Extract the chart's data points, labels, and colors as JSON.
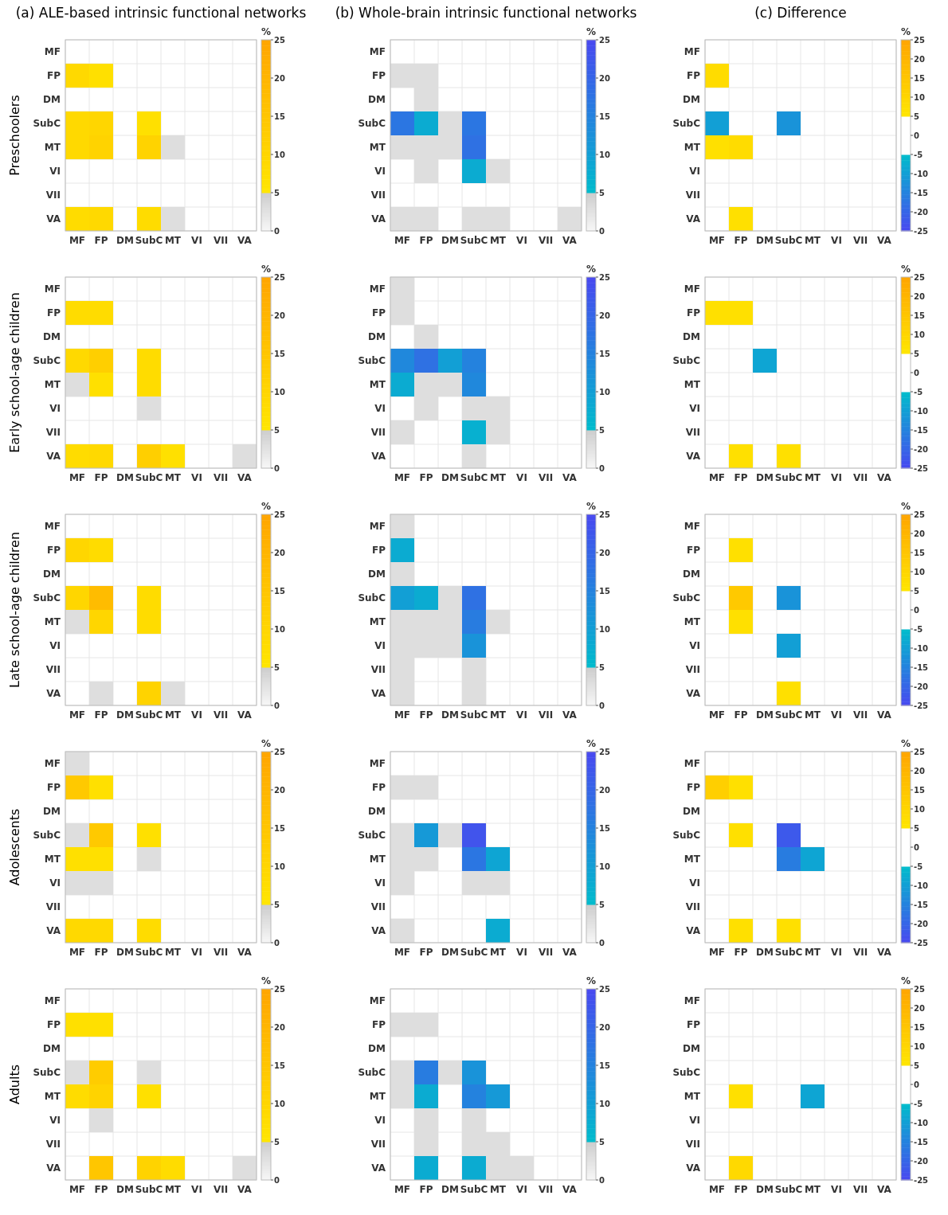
{
  "chart_data": [
    {
      "type": "heatmap",
      "title": "(a) ALE-based intrinsic functional networks",
      "ylabel": "Preschoolers",
      "clabel": "%",
      "categories": [
        "MF",
        "FP",
        "DM",
        "SubC",
        "MT",
        "VI",
        "VII",
        "VA"
      ],
      "y_categories": [
        "MF",
        "FP",
        "DM",
        "SubC",
        "MT",
        "VI",
        "VII",
        "VA"
      ],
      "clim": [
        0,
        25
      ],
      "cticks": [
        0,
        5,
        10,
        15,
        20,
        25
      ],
      "colors": [
        "#e0e0e0",
        "#ffe600",
        "#ffa500"
      ],
      "grid": true,
      "cells": [
        [
          null,
          null,
          null,
          null,
          null,
          null,
          null,
          null
        ],
        [
          9,
          7,
          null,
          null,
          null,
          null,
          null,
          null
        ],
        [
          null,
          null,
          null,
          null,
          null,
          null,
          null,
          null
        ],
        [
          9,
          10,
          null,
          7,
          null,
          null,
          null,
          null
        ],
        [
          9,
          11,
          null,
          11,
          3,
          null,
          null,
          null
        ],
        [
          null,
          null,
          null,
          null,
          null,
          null,
          null,
          null
        ],
        [
          null,
          null,
          null,
          null,
          null,
          null,
          null,
          null
        ],
        [
          8,
          9,
          null,
          8,
          3,
          null,
          null,
          null
        ]
      ]
    },
    {
      "type": "heatmap",
      "title": "(b) Whole-brain intrinsic functional networks",
      "clabel": "%",
      "categories": [
        "MF",
        "FP",
        "DM",
        "SubC",
        "MT",
        "VI",
        "VII",
        "VA"
      ],
      "y_categories": [
        "MF",
        "FP",
        "DM",
        "SubC",
        "MT",
        "VI",
        "VII",
        "VA"
      ],
      "clim": [
        0,
        25
      ],
      "cticks": [
        0,
        5,
        10,
        15,
        20,
        25
      ],
      "colors": [
        "#e0e0e0",
        "#00bccc",
        "#4848f0"
      ],
      "grid": true,
      "cells": [
        [
          null,
          null,
          null,
          null,
          null,
          null,
          null,
          null
        ],
        [
          3,
          3,
          null,
          null,
          null,
          null,
          null,
          null
        ],
        [
          null,
          3,
          null,
          null,
          null,
          null,
          null,
          null
        ],
        [
          17,
          8,
          3,
          17,
          null,
          null,
          null,
          null
        ],
        [
          3,
          3,
          3,
          18,
          null,
          null,
          null,
          null
        ],
        [
          null,
          3,
          null,
          8,
          3,
          null,
          null,
          null
        ],
        [
          null,
          null,
          null,
          null,
          null,
          null,
          null,
          null
        ],
        [
          3,
          3,
          null,
          3,
          3,
          null,
          null,
          3
        ]
      ]
    },
    {
      "type": "heatmap",
      "title": "(c) Difference",
      "clabel": "%",
      "categories": [
        "MF",
        "FP",
        "DM",
        "SubC",
        "MT",
        "VI",
        "VII",
        "VA"
      ],
      "y_categories": [
        "MF",
        "FP",
        "DM",
        "SubC",
        "MT",
        "VI",
        "VII",
        "VA"
      ],
      "clim": [
        -25,
        25
      ],
      "cticks": [
        -25,
        -20,
        -15,
        -10,
        -5,
        0,
        5,
        10,
        15,
        20,
        25
      ],
      "colors": [
        "#4848f0",
        "#00bccc",
        "#ffe600",
        "#ffa500"
      ],
      "grid": true,
      "cells": [
        [
          null,
          null,
          null,
          null,
          null,
          null,
          null,
          null
        ],
        [
          8,
          null,
          null,
          null,
          null,
          null,
          null,
          null
        ],
        [
          null,
          null,
          null,
          null,
          null,
          null,
          null,
          null
        ],
        [
          -10,
          null,
          null,
          -12,
          null,
          null,
          null,
          null
        ],
        [
          7,
          8,
          null,
          null,
          null,
          null,
          null,
          null
        ],
        [
          null,
          null,
          null,
          null,
          null,
          null,
          null,
          null
        ],
        [
          null,
          null,
          null,
          null,
          null,
          null,
          null,
          null
        ],
        [
          null,
          7,
          null,
          null,
          null,
          null,
          null,
          null
        ]
      ]
    },
    {
      "type": "heatmap",
      "ylabel": "Early school-age children",
      "clabel": "%",
      "categories": [
        "MF",
        "FP",
        "DM",
        "SubC",
        "MT",
        "VI",
        "VII",
        "VA"
      ],
      "y_categories": [
        "MF",
        "FP",
        "DM",
        "SubC",
        "MT",
        "VI",
        "VII",
        "VA"
      ],
      "clim": [
        0,
        25
      ],
      "cticks": [
        0,
        5,
        10,
        15,
        20,
        25
      ],
      "colors": [
        "#e0e0e0",
        "#ffe600",
        "#ffa500"
      ],
      "grid": true,
      "cells": [
        [
          null,
          null,
          null,
          null,
          null,
          null,
          null,
          null
        ],
        [
          8,
          8,
          null,
          null,
          null,
          null,
          null,
          null
        ],
        [
          null,
          null,
          null,
          null,
          null,
          null,
          null,
          null
        ],
        [
          9,
          12,
          null,
          8,
          null,
          null,
          null,
          null
        ],
        [
          3,
          7,
          null,
          8,
          null,
          null,
          null,
          null
        ],
        [
          null,
          null,
          null,
          3,
          null,
          null,
          null,
          null
        ],
        [
          null,
          null,
          null,
          null,
          null,
          null,
          null,
          null
        ],
        [
          8,
          9,
          null,
          12,
          7,
          null,
          null,
          3
        ]
      ]
    },
    {
      "type": "heatmap",
      "clabel": "%",
      "categories": [
        "MF",
        "FP",
        "DM",
        "SubC",
        "MT",
        "VI",
        "VII",
        "VA"
      ],
      "y_categories": [
        "MF",
        "FP",
        "DM",
        "SubC",
        "MT",
        "VI",
        "VII",
        "VA"
      ],
      "clim": [
        0,
        25
      ],
      "cticks": [
        0,
        5,
        10,
        15,
        20,
        25
      ],
      "colors": [
        "#e0e0e0",
        "#00bccc",
        "#4848f0"
      ],
      "grid": true,
      "cells": [
        [
          3,
          null,
          null,
          null,
          null,
          null,
          null,
          null
        ],
        [
          3,
          null,
          null,
          null,
          null,
          null,
          null,
          null
        ],
        [
          null,
          3,
          null,
          null,
          null,
          null,
          null,
          null
        ],
        [
          14,
          18,
          10,
          15,
          null,
          null,
          null,
          null
        ],
        [
          8,
          3,
          3,
          14,
          null,
          null,
          null,
          null
        ],
        [
          null,
          3,
          null,
          3,
          3,
          null,
          null,
          null
        ],
        [
          3,
          null,
          null,
          7,
          3,
          null,
          null,
          null
        ],
        [
          null,
          null,
          null,
          3,
          null,
          null,
          null,
          null
        ]
      ]
    },
    {
      "type": "heatmap",
      "clabel": "%",
      "categories": [
        "MF",
        "FP",
        "DM",
        "SubC",
        "MT",
        "VI",
        "VII",
        "VA"
      ],
      "y_categories": [
        "MF",
        "FP",
        "DM",
        "SubC",
        "MT",
        "VI",
        "VII",
        "VA"
      ],
      "clim": [
        -25,
        25
      ],
      "cticks": [
        -25,
        -20,
        -15,
        -10,
        -5,
        0,
        5,
        10,
        15,
        20,
        25
      ],
      "colors": [
        "#4848f0",
        "#00bccc",
        "#ffe600",
        "#ffa500"
      ],
      "grid": true,
      "cells": [
        [
          null,
          null,
          null,
          null,
          null,
          null,
          null,
          null
        ],
        [
          7,
          7,
          null,
          null,
          null,
          null,
          null,
          null
        ],
        [
          null,
          null,
          null,
          null,
          null,
          null,
          null,
          null
        ],
        [
          null,
          null,
          -9,
          null,
          null,
          null,
          null,
          null
        ],
        [
          null,
          null,
          null,
          null,
          null,
          null,
          null,
          null
        ],
        [
          null,
          null,
          null,
          null,
          null,
          null,
          null,
          null
        ],
        [
          null,
          null,
          null,
          null,
          null,
          null,
          null,
          null
        ],
        [
          null,
          7,
          null,
          7,
          null,
          null,
          null,
          null
        ]
      ]
    },
    {
      "type": "heatmap",
      "ylabel": "Late school-age children",
      "clabel": "%",
      "categories": [
        "MF",
        "FP",
        "DM",
        "SubC",
        "MT",
        "VI",
        "VII",
        "VA"
      ],
      "y_categories": [
        "MF",
        "FP",
        "DM",
        "SubC",
        "MT",
        "VI",
        "VII",
        "VA"
      ],
      "clim": [
        0,
        25
      ],
      "cticks": [
        0,
        5,
        10,
        15,
        20,
        25
      ],
      "colors": [
        "#e0e0e0",
        "#ffe600",
        "#ffa500"
      ],
      "grid": true,
      "cells": [
        [
          null,
          null,
          null,
          null,
          null,
          null,
          null,
          null
        ],
        [
          10,
          8,
          null,
          null,
          null,
          null,
          null,
          null
        ],
        [
          null,
          null,
          null,
          null,
          null,
          null,
          null,
          null
        ],
        [
          10,
          18,
          null,
          8,
          null,
          null,
          null,
          null
        ],
        [
          3,
          10,
          null,
          8,
          null,
          null,
          null,
          null
        ],
        [
          null,
          null,
          null,
          null,
          null,
          null,
          null,
          null
        ],
        [
          null,
          null,
          null,
          null,
          null,
          null,
          null,
          null
        ],
        [
          null,
          3,
          null,
          11,
          3,
          null,
          null,
          null
        ]
      ]
    },
    {
      "type": "heatmap",
      "clabel": "%",
      "categories": [
        "MF",
        "FP",
        "DM",
        "SubC",
        "MT",
        "VI",
        "VII",
        "VA"
      ],
      "y_categories": [
        "MF",
        "FP",
        "DM",
        "SubC",
        "MT",
        "VI",
        "VII",
        "VA"
      ],
      "clim": [
        0,
        25
      ],
      "cticks": [
        0,
        5,
        10,
        15,
        20,
        25
      ],
      "colors": [
        "#e0e0e0",
        "#00bccc",
        "#4848f0"
      ],
      "grid": true,
      "cells": [
        [
          3,
          null,
          null,
          null,
          null,
          null,
          null,
          null
        ],
        [
          8,
          null,
          null,
          null,
          null,
          null,
          null,
          null
        ],
        [
          3,
          null,
          null,
          null,
          null,
          null,
          null,
          null
        ],
        [
          10,
          8,
          3,
          18,
          null,
          null,
          null,
          null
        ],
        [
          3,
          3,
          3,
          16,
          3,
          null,
          null,
          null
        ],
        [
          3,
          3,
          3,
          12,
          null,
          null,
          null,
          null
        ],
        [
          3,
          null,
          null,
          3,
          null,
          null,
          null,
          null
        ],
        [
          3,
          null,
          null,
          3,
          null,
          null,
          null,
          null
        ]
      ]
    },
    {
      "type": "heatmap",
      "clabel": "%",
      "categories": [
        "MF",
        "FP",
        "DM",
        "SubC",
        "MT",
        "VI",
        "VII",
        "VA"
      ],
      "y_categories": [
        "MF",
        "FP",
        "DM",
        "SubC",
        "MT",
        "VI",
        "VII",
        "VA"
      ],
      "clim": [
        -25,
        25
      ],
      "cticks": [
        -25,
        -20,
        -15,
        -10,
        -5,
        0,
        5,
        10,
        15,
        20,
        25
      ],
      "colors": [
        "#4848f0",
        "#00bccc",
        "#ffe600",
        "#ffa500"
      ],
      "grid": true,
      "cells": [
        [
          null,
          null,
          null,
          null,
          null,
          null,
          null,
          null
        ],
        [
          null,
          7,
          null,
          null,
          null,
          null,
          null,
          null
        ],
        [
          null,
          null,
          null,
          null,
          null,
          null,
          null,
          null
        ],
        [
          null,
          14,
          null,
          -12,
          null,
          null,
          null,
          null
        ],
        [
          null,
          7,
          null,
          null,
          null,
          null,
          null,
          null
        ],
        [
          null,
          null,
          null,
          -10,
          null,
          null,
          null,
          null
        ],
        [
          null,
          null,
          null,
          null,
          null,
          null,
          null,
          null
        ],
        [
          null,
          null,
          null,
          7,
          null,
          null,
          null,
          null
        ]
      ]
    },
    {
      "type": "heatmap",
      "ylabel": "Adolescents",
      "clabel": "%",
      "categories": [
        "MF",
        "FP",
        "DM",
        "SubC",
        "MT",
        "VI",
        "VII",
        "VA"
      ],
      "y_categories": [
        "MF",
        "FP",
        "DM",
        "SubC",
        "MT",
        "VI",
        "VII",
        "VA"
      ],
      "clim": [
        0,
        25
      ],
      "cticks": [
        0,
        5,
        10,
        15,
        20,
        25
      ],
      "colors": [
        "#e0e0e0",
        "#ffe600",
        "#ffa500"
      ],
      "grid": true,
      "cells": [
        [
          3,
          null,
          null,
          null,
          null,
          null,
          null,
          null
        ],
        [
          14,
          7,
          null,
          null,
          null,
          null,
          null,
          null
        ],
        [
          null,
          null,
          null,
          null,
          null,
          null,
          null,
          null
        ],
        [
          3,
          14,
          null,
          7,
          null,
          null,
          null,
          null
        ],
        [
          7,
          7,
          null,
          3,
          null,
          null,
          null,
          null
        ],
        [
          3,
          3,
          null,
          null,
          null,
          null,
          null,
          null
        ],
        [
          null,
          null,
          null,
          null,
          null,
          null,
          null,
          null
        ],
        [
          9,
          9,
          null,
          8,
          null,
          null,
          null,
          null
        ]
      ]
    },
    {
      "type": "heatmap",
      "clabel": "%",
      "categories": [
        "MF",
        "FP",
        "DM",
        "SubC",
        "MT",
        "VI",
        "VII",
        "VA"
      ],
      "y_categories": [
        "MF",
        "FP",
        "DM",
        "SubC",
        "MT",
        "VI",
        "VII",
        "VA"
      ],
      "clim": [
        0,
        25
      ],
      "cticks": [
        0,
        5,
        10,
        15,
        20,
        25
      ],
      "colors": [
        "#e0e0e0",
        "#00bccc",
        "#4848f0"
      ],
      "grid": true,
      "cells": [
        [
          null,
          null,
          null,
          null,
          null,
          null,
          null,
          null
        ],
        [
          3,
          3,
          null,
          null,
          null,
          null,
          null,
          null
        ],
        [
          null,
          null,
          null,
          null,
          null,
          null,
          null,
          null
        ],
        [
          3,
          11,
          3,
          23,
          null,
          null,
          null,
          null
        ],
        [
          3,
          3,
          null,
          17,
          9,
          null,
          null,
          null
        ],
        [
          3,
          null,
          null,
          3,
          3,
          null,
          null,
          null
        ],
        [
          null,
          null,
          null,
          null,
          null,
          null,
          null,
          null
        ],
        [
          3,
          null,
          null,
          null,
          8,
          null,
          null,
          null
        ]
      ]
    },
    {
      "type": "heatmap",
      "clabel": "%",
      "categories": [
        "MF",
        "FP",
        "DM",
        "SubC",
        "MT",
        "VI",
        "VII",
        "VA"
      ],
      "y_categories": [
        "MF",
        "FP",
        "DM",
        "SubC",
        "MT",
        "VI",
        "VII",
        "VA"
      ],
      "clim": [
        -25,
        25
      ],
      "cticks": [
        -25,
        -20,
        -15,
        -10,
        -5,
        0,
        5,
        10,
        15,
        20,
        25
      ],
      "colors": [
        "#4848f0",
        "#00bccc",
        "#ffe600",
        "#ffa500"
      ],
      "grid": true,
      "cells": [
        [
          null,
          null,
          null,
          null,
          null,
          null,
          null,
          null
        ],
        [
          12,
          7,
          null,
          null,
          null,
          null,
          null,
          null
        ],
        [
          null,
          null,
          null,
          null,
          null,
          null,
          null,
          null
        ],
        [
          null,
          7,
          null,
          -22,
          null,
          null,
          null,
          null
        ],
        [
          null,
          null,
          null,
          -16,
          -9,
          null,
          null,
          null
        ],
        [
          null,
          null,
          null,
          null,
          null,
          null,
          null,
          null
        ],
        [
          null,
          null,
          null,
          null,
          null,
          null,
          null,
          null
        ],
        [
          null,
          7,
          null,
          7,
          null,
          null,
          null,
          null
        ]
      ]
    },
    {
      "type": "heatmap",
      "ylabel": "Adults",
      "clabel": "%",
      "categories": [
        "MF",
        "FP",
        "DM",
        "SubC",
        "MT",
        "VI",
        "VII",
        "VA"
      ],
      "y_categories": [
        "MF",
        "FP",
        "DM",
        "SubC",
        "MT",
        "VI",
        "VII",
        "VA"
      ],
      "clim": [
        0,
        25
      ],
      "cticks": [
        0,
        5,
        10,
        15,
        20,
        25
      ],
      "colors": [
        "#e0e0e0",
        "#ffe600",
        "#ffa500"
      ],
      "grid": true,
      "cells": [
        [
          null,
          null,
          null,
          null,
          null,
          null,
          null,
          null
        ],
        [
          7,
          7,
          null,
          null,
          null,
          null,
          null,
          null
        ],
        [
          null,
          null,
          null,
          null,
          null,
          null,
          null,
          null
        ],
        [
          3,
          13,
          null,
          3,
          null,
          null,
          null,
          null
        ],
        [
          8,
          11,
          null,
          7,
          null,
          null,
          null,
          null
        ],
        [
          null,
          3,
          null,
          null,
          null,
          null,
          null,
          null
        ],
        [
          null,
          null,
          null,
          null,
          null,
          null,
          null,
          null
        ],
        [
          null,
          15,
          null,
          11,
          8,
          null,
          null,
          3
        ]
      ]
    },
    {
      "type": "heatmap",
      "clabel": "%",
      "categories": [
        "MF",
        "FP",
        "DM",
        "SubC",
        "MT",
        "VI",
        "VII",
        "VA"
      ],
      "y_categories": [
        "MF",
        "FP",
        "DM",
        "SubC",
        "MT",
        "VI",
        "VII",
        "VA"
      ],
      "clim": [
        0,
        25
      ],
      "cticks": [
        0,
        5,
        10,
        15,
        20,
        25
      ],
      "colors": [
        "#e0e0e0",
        "#00bccc",
        "#4848f0"
      ],
      "grid": true,
      "cells": [
        [
          null,
          null,
          null,
          null,
          null,
          null,
          null,
          null
        ],
        [
          3,
          3,
          null,
          null,
          null,
          null,
          null,
          null
        ],
        [
          null,
          null,
          null,
          null,
          null,
          null,
          null,
          null
        ],
        [
          3,
          16,
          3,
          12,
          null,
          null,
          null,
          null
        ],
        [
          3,
          8,
          null,
          15,
          11,
          null,
          null,
          null
        ],
        [
          null,
          3,
          null,
          3,
          null,
          null,
          null,
          null
        ],
        [
          null,
          3,
          null,
          3,
          3,
          null,
          null,
          null
        ],
        [
          null,
          8,
          null,
          8,
          3,
          3,
          null,
          null
        ]
      ]
    },
    {
      "type": "heatmap",
      "clabel": "%",
      "categories": [
        "MF",
        "FP",
        "DM",
        "SubC",
        "MT",
        "VI",
        "VII",
        "VA"
      ],
      "y_categories": [
        "MF",
        "FP",
        "DM",
        "SubC",
        "MT",
        "VI",
        "VII",
        "VA"
      ],
      "clim": [
        -25,
        25
      ],
      "cticks": [
        -25,
        -20,
        -15,
        -10,
        -5,
        0,
        5,
        10,
        15,
        20,
        25
      ],
      "colors": [
        "#4848f0",
        "#00bccc",
        "#ffe600",
        "#ffa500"
      ],
      "grid": true,
      "cells": [
        [
          null,
          null,
          null,
          null,
          null,
          null,
          null,
          null
        ],
        [
          null,
          null,
          null,
          null,
          null,
          null,
          null,
          null
        ],
        [
          null,
          null,
          null,
          null,
          null,
          null,
          null,
          null
        ],
        [
          null,
          null,
          null,
          null,
          null,
          null,
          null,
          null
        ],
        [
          null,
          7,
          null,
          null,
          -9,
          null,
          null,
          null
        ],
        [
          null,
          null,
          null,
          null,
          null,
          null,
          null,
          null
        ],
        [
          null,
          null,
          null,
          null,
          null,
          null,
          null,
          null
        ],
        [
          null,
          9,
          null,
          null,
          null,
          null,
          null,
          null
        ]
      ]
    }
  ]
}
